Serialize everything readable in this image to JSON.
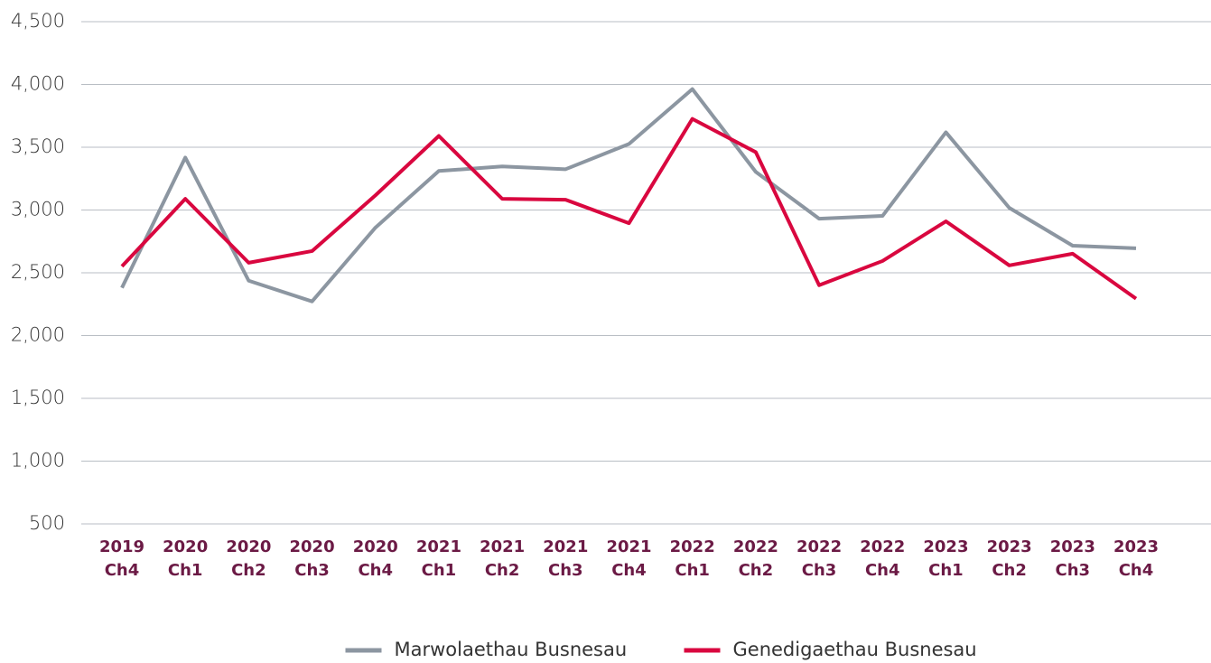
{
  "chart_data": {
    "type": "line",
    "categories": [
      "2019 Ch4",
      "2020 Ch1",
      "2020 Ch2",
      "2020 Ch3",
      "2020 Ch4",
      "2021 Ch1",
      "2021 Ch2",
      "2021 Ch3",
      "2021 Ch4",
      "2022 Ch1",
      "2022 Ch2",
      "2022 Ch3",
      "2022 Ch4",
      "2023 Ch1",
      "2023 Ch2",
      "2023 Ch3",
      "2023 Ch4"
    ],
    "series": [
      {
        "name": "Marwolaethau Busnesau",
        "color": "#8c96a1",
        "values": [
          2380,
          3418,
          2437,
          2272,
          2860,
          3311,
          3347,
          3325,
          3526,
          3963,
          3304,
          2931,
          2953,
          3619,
          3017,
          2716,
          2695
        ]
      },
      {
        "name": "Genedigaethau Busnesau",
        "color": "#d9073f",
        "values": [
          2551,
          3089,
          2580,
          2673,
          3117,
          3590,
          3089,
          3082,
          2895,
          3726,
          3461,
          2401,
          2594,
          2910,
          2559,
          2652,
          2294
        ]
      }
    ],
    "ylim": [
      500,
      4500
    ],
    "yticks": [
      {
        "value": 500,
        "label": "500"
      },
      {
        "value": 1000,
        "label": "1,000"
      },
      {
        "value": 1500,
        "label": "1,500"
      },
      {
        "value": 2000,
        "label": "2,000"
      },
      {
        "value": 2500,
        "label": "2,500"
      },
      {
        "value": 3000,
        "label": "3,000"
      },
      {
        "value": 3500,
        "label": "3,500"
      },
      {
        "value": 4000,
        "label": "4,000"
      },
      {
        "value": 4500,
        "label": "4,500"
      }
    ],
    "grid": true,
    "legend": "bottom"
  }
}
